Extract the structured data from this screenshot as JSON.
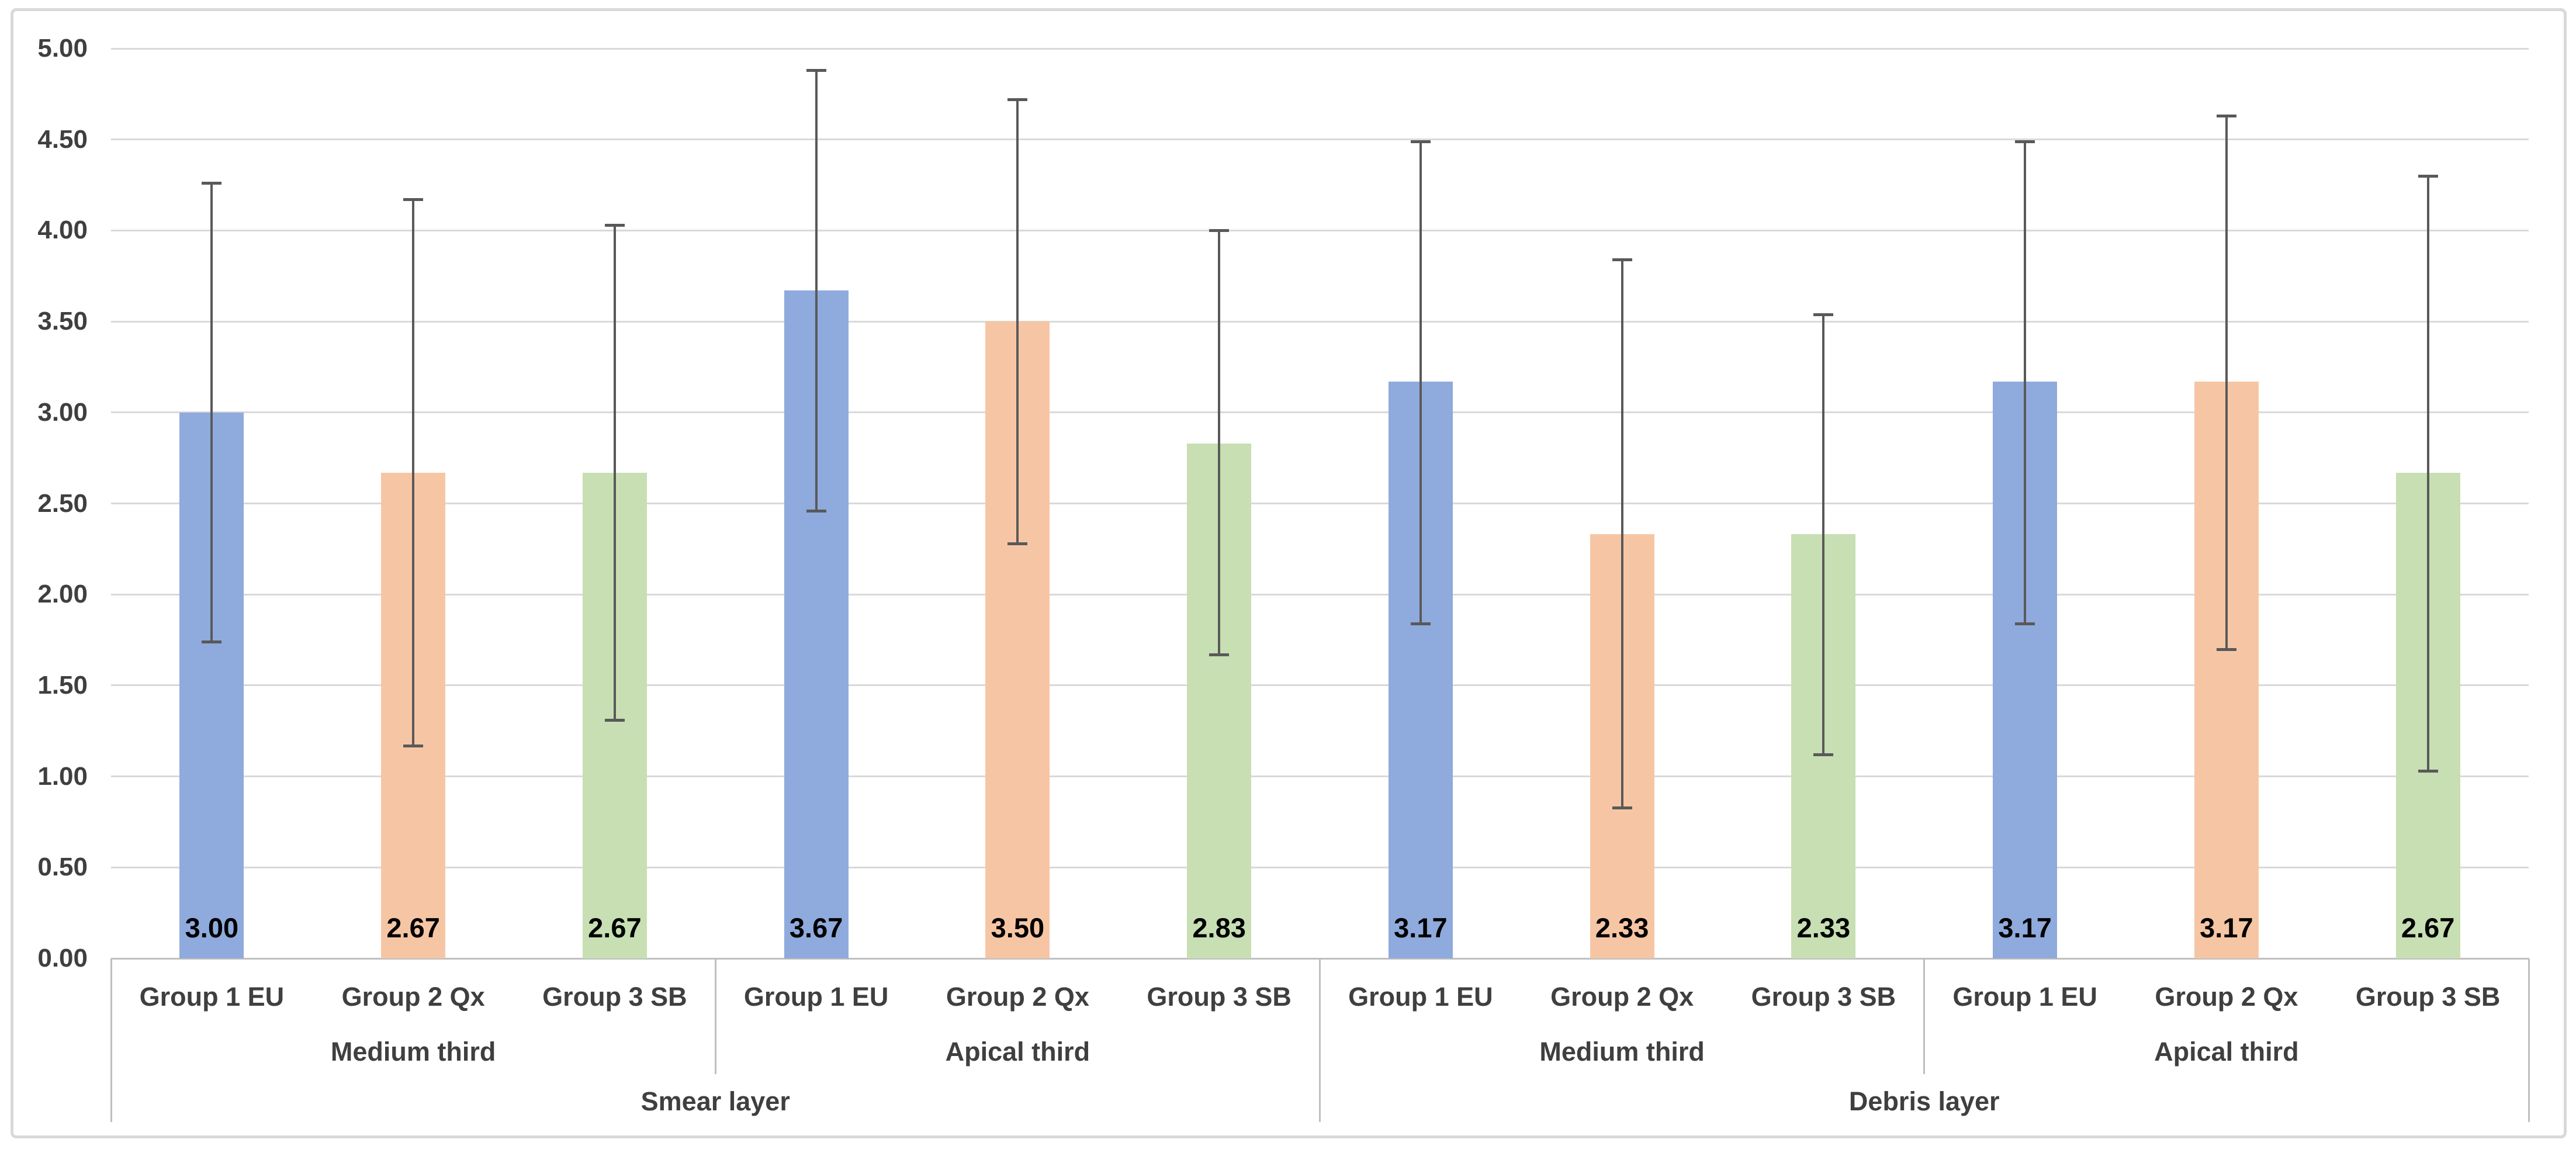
{
  "chart_data": {
    "type": "bar",
    "title": "",
    "xlabel": "",
    "ylabel": "",
    "ylim": [
      0.0,
      5.0
    ],
    "ytick_step": 0.5,
    "ytick_format": "0.00",
    "grid": true,
    "legend": "none",
    "error_bars": true,
    "value_labels_position": "inside-base",
    "colors": {
      "group1_eu": "#8FAADC",
      "group2_qx": "#F6C6A4",
      "group3_sb": "#C7DFB2",
      "error_bar": "#595959",
      "gridline": "#D9D9D9",
      "axis_line": "#BFBFBF",
      "frame_border": "#D9D9D9",
      "value_label_text": "#000000",
      "category_text": "#3F3F3F"
    },
    "layers": [
      "Smear layer",
      "Debris layer"
    ],
    "thirds": [
      "Medium third",
      "Apical third",
      "Medium third",
      "Apical third"
    ],
    "categories": [
      "Group 1 EU",
      "Group 2 Qx",
      "Group 3 SB",
      "Group 1 EU",
      "Group 2 Qx",
      "Group 3 SB",
      "Group 1 EU",
      "Group 2 Qx",
      "Group 3 SB",
      "Group 1 EU",
      "Group 2 Qx",
      "Group 3 SB"
    ],
    "bars": [
      {
        "layer": "Smear layer",
        "third": "Medium third",
        "group": "Group 1 EU",
        "color_key": "group1_eu",
        "value": 3.0,
        "label": "3.00",
        "err_high": 4.26,
        "err_low": 1.74
      },
      {
        "layer": "Smear layer",
        "third": "Medium third",
        "group": "Group 2 Qx",
        "color_key": "group2_qx",
        "value": 2.67,
        "label": "2.67",
        "err_high": 4.17,
        "err_low": 1.17
      },
      {
        "layer": "Smear layer",
        "third": "Medium third",
        "group": "Group 3 SB",
        "color_key": "group3_sb",
        "value": 2.67,
        "label": "2.67",
        "err_high": 4.03,
        "err_low": 1.31
      },
      {
        "layer": "Smear layer",
        "third": "Apical third",
        "group": "Group 1 EU",
        "color_key": "group1_eu",
        "value": 3.67,
        "label": "3.67",
        "err_high": 4.88,
        "err_low": 2.46
      },
      {
        "layer": "Smear layer",
        "third": "Apical third",
        "group": "Group 2 Qx",
        "color_key": "group2_qx",
        "value": 3.5,
        "label": "3.50",
        "err_high": 4.72,
        "err_low": 2.28
      },
      {
        "layer": "Smear layer",
        "third": "Apical third",
        "group": "Group 3 SB",
        "color_key": "group3_sb",
        "value": 2.83,
        "label": "2.83",
        "err_high": 4.0,
        "err_low": 1.67
      },
      {
        "layer": "Debris layer",
        "third": "Medium third",
        "group": "Group 1 EU",
        "color_key": "group1_eu",
        "value": 3.17,
        "label": "3.17",
        "err_high": 4.49,
        "err_low": 1.84
      },
      {
        "layer": "Debris layer",
        "third": "Medium third",
        "group": "Group 2 Qx",
        "color_key": "group2_qx",
        "value": 2.33,
        "label": "2.33",
        "err_high": 3.84,
        "err_low": 0.83
      },
      {
        "layer": "Debris layer",
        "third": "Medium third",
        "group": "Group 3 SB",
        "color_key": "group3_sb",
        "value": 2.33,
        "label": "2.33",
        "err_high": 3.54,
        "err_low": 1.12
      },
      {
        "layer": "Debris layer",
        "third": "Apical third",
        "group": "Group 1 EU",
        "color_key": "group1_eu",
        "value": 3.17,
        "label": "3.17",
        "err_high": 4.49,
        "err_low": 1.84
      },
      {
        "layer": "Debris layer",
        "third": "Apical third",
        "group": "Group 2 Qx",
        "color_key": "group2_qx",
        "value": 3.17,
        "label": "3.17",
        "err_high": 4.63,
        "err_low": 1.7
      },
      {
        "layer": "Debris layer",
        "third": "Apical third",
        "group": "Group 3 SB",
        "color_key": "group3_sb",
        "value": 2.67,
        "label": "2.67",
        "err_high": 4.3,
        "err_low": 1.03
      }
    ],
    "ytick_labels": [
      "0.00",
      "0.50",
      "1.00",
      "1.50",
      "2.00",
      "2.50",
      "3.00",
      "3.50",
      "4.00",
      "4.50",
      "5.00"
    ]
  }
}
